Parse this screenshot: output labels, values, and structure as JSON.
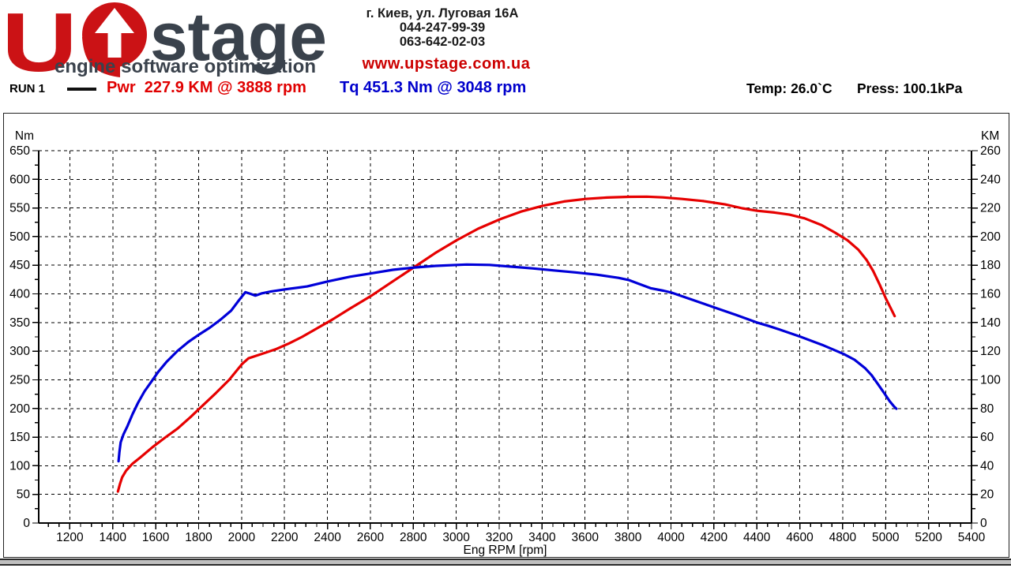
{
  "header": {
    "logo": {
      "letter_u": "U",
      "word_stage": "stage",
      "tagline": "engine software optimization",
      "red": "#cb1215",
      "dark": "#3a424c"
    },
    "address": "г. Киев, ул. Луговая 16А",
    "phone1": "044-247-99-39",
    "phone2": "063-642-02-03",
    "website": "www.upstage.com.ua"
  },
  "run_info": {
    "run_label": "RUN 1",
    "power_text": "Pwr  227.9 KM @ 3888 rpm",
    "torque_text": "Tq 451.3 Nm @ 3048 rpm",
    "temp_text": "Temp: 26.0`C",
    "press_text": "Press: 100.1kPa"
  },
  "colors": {
    "power_curve": "#e60000",
    "torque_curve": "#0000d8",
    "grid": "#000000",
    "text": "#000000"
  },
  "chart_data": {
    "type": "line",
    "xlabel": "Eng RPM [rpm]",
    "grid": "dashed, major gridlines both axes",
    "legend_position": "top header row",
    "x_range": [
      1055,
      5400
    ],
    "x_major_step": 200,
    "x_minor_step": 50,
    "x_minor_start": 1100,
    "x_ticks": [
      1200,
      1400,
      1600,
      1800,
      2000,
      2200,
      2400,
      2600,
      2800,
      3000,
      3200,
      3400,
      3600,
      3800,
      4000,
      4200,
      4400,
      4600,
      4800,
      5000,
      5200,
      5400
    ],
    "left_axis": {
      "label": "Nm",
      "range": [
        0,
        650
      ],
      "major_step": 50,
      "minor_step": 25
    },
    "right_axis": {
      "label": "KM",
      "range": [
        0,
        260
      ],
      "major_step": 20,
      "minor_step": 10
    },
    "left_ticks": [
      0,
      50,
      100,
      150,
      200,
      250,
      300,
      350,
      400,
      450,
      500,
      550,
      600,
      650
    ],
    "right_ticks": [
      0,
      20,
      40,
      60,
      80,
      100,
      120,
      140,
      160,
      180,
      200,
      220,
      240,
      260
    ],
    "series": [
      {
        "name": "Torque",
        "units": "Nm",
        "axis": "left",
        "color": "#0000d8",
        "peak": {
          "value": 451.3,
          "rpm": 3048
        },
        "points": [
          [
            1427,
            108
          ],
          [
            1431,
            124
          ],
          [
            1437,
            141
          ],
          [
            1450,
            155
          ],
          [
            1468,
            169
          ],
          [
            1492,
            190
          ],
          [
            1518,
            210
          ],
          [
            1548,
            230
          ],
          [
            1578,
            246
          ],
          [
            1612,
            264
          ],
          [
            1652,
            282
          ],
          [
            1700,
            300
          ],
          [
            1752,
            316
          ],
          [
            1802,
            329
          ],
          [
            1852,
            341
          ],
          [
            1902,
            355
          ],
          [
            1952,
            371
          ],
          [
            1988,
            389
          ],
          [
            2018,
            403
          ],
          [
            2042,
            400
          ],
          [
            2064,
            397
          ],
          [
            2095,
            401
          ],
          [
            2135,
            404
          ],
          [
            2205,
            408
          ],
          [
            2305,
            413
          ],
          [
            2405,
            422
          ],
          [
            2505,
            430
          ],
          [
            2605,
            436
          ],
          [
            2705,
            442
          ],
          [
            2805,
            446
          ],
          [
            2905,
            449
          ],
          [
            3005,
            450.6
          ],
          [
            3048,
            451.3
          ],
          [
            3155,
            450.6
          ],
          [
            3255,
            447.5
          ],
          [
            3355,
            444.5
          ],
          [
            3455,
            441
          ],
          [
            3555,
            437.5
          ],
          [
            3655,
            433.5
          ],
          [
            3755,
            428
          ],
          [
            3805,
            424
          ],
          [
            3855,
            417
          ],
          [
            3905,
            410
          ],
          [
            3965,
            405.5
          ],
          [
            4005,
            402
          ],
          [
            4105,
            389
          ],
          [
            4205,
            376
          ],
          [
            4305,
            363
          ],
          [
            4405,
            349.5
          ],
          [
            4455,
            344
          ],
          [
            4505,
            338
          ],
          [
            4605,
            325
          ],
          [
            4705,
            311
          ],
          [
            4805,
            295
          ],
          [
            4855,
            285
          ],
          [
            4905,
            270
          ],
          [
            4935,
            258
          ],
          [
            4965,
            242
          ],
          [
            4995,
            226
          ],
          [
            5018,
            213
          ],
          [
            5038,
            204
          ],
          [
            5050,
            199.5
          ]
        ]
      },
      {
        "name": "Power",
        "units": "KM",
        "axis": "right",
        "color": "#e60000",
        "peak": {
          "value": 227.9,
          "rpm": 3888
        },
        "points": [
          [
            1424,
            22
          ],
          [
            1434,
            27.5
          ],
          [
            1444,
            32
          ],
          [
            1462,
            36.5
          ],
          [
            1492,
            41.5
          ],
          [
            1530,
            46
          ],
          [
            1585,
            53
          ],
          [
            1642,
            59.5
          ],
          [
            1702,
            66
          ],
          [
            1762,
            74
          ],
          [
            1822,
            82.5
          ],
          [
            1882,
            91
          ],
          [
            1942,
            100
          ],
          [
            2002,
            111
          ],
          [
            2032,
            115
          ],
          [
            2072,
            117
          ],
          [
            2112,
            119
          ],
          [
            2162,
            121.5
          ],
          [
            2222,
            125.5
          ],
          [
            2282,
            130
          ],
          [
            2352,
            136
          ],
          [
            2422,
            142
          ],
          [
            2502,
            149.5
          ],
          [
            2602,
            158.5
          ],
          [
            2702,
            168.5
          ],
          [
            2802,
            178.5
          ],
          [
            2902,
            188.5
          ],
          [
            3002,
            197.5
          ],
          [
            3102,
            205.5
          ],
          [
            3202,
            212
          ],
          [
            3302,
            217.5
          ],
          [
            3402,
            221.5
          ],
          [
            3502,
            224.5
          ],
          [
            3602,
            226.3
          ],
          [
            3702,
            227.3
          ],
          [
            3802,
            227.8
          ],
          [
            3888,
            227.9
          ],
          [
            3962,
            227.4
          ],
          [
            4052,
            226.3
          ],
          [
            4152,
            224.8
          ],
          [
            4252,
            222.5
          ],
          [
            4332,
            219.8
          ],
          [
            4402,
            218
          ],
          [
            4482,
            216.8
          ],
          [
            4552,
            215.3
          ],
          [
            4622,
            212.8
          ],
          [
            4702,
            208
          ],
          [
            4762,
            203
          ],
          [
            4822,
            197.5
          ],
          [
            4872,
            191
          ],
          [
            4912,
            183.5
          ],
          [
            4942,
            176
          ],
          [
            4972,
            166.5
          ],
          [
            5002,
            156.5
          ],
          [
            5022,
            150.5
          ],
          [
            5042,
            144.5
          ]
        ]
      }
    ]
  }
}
